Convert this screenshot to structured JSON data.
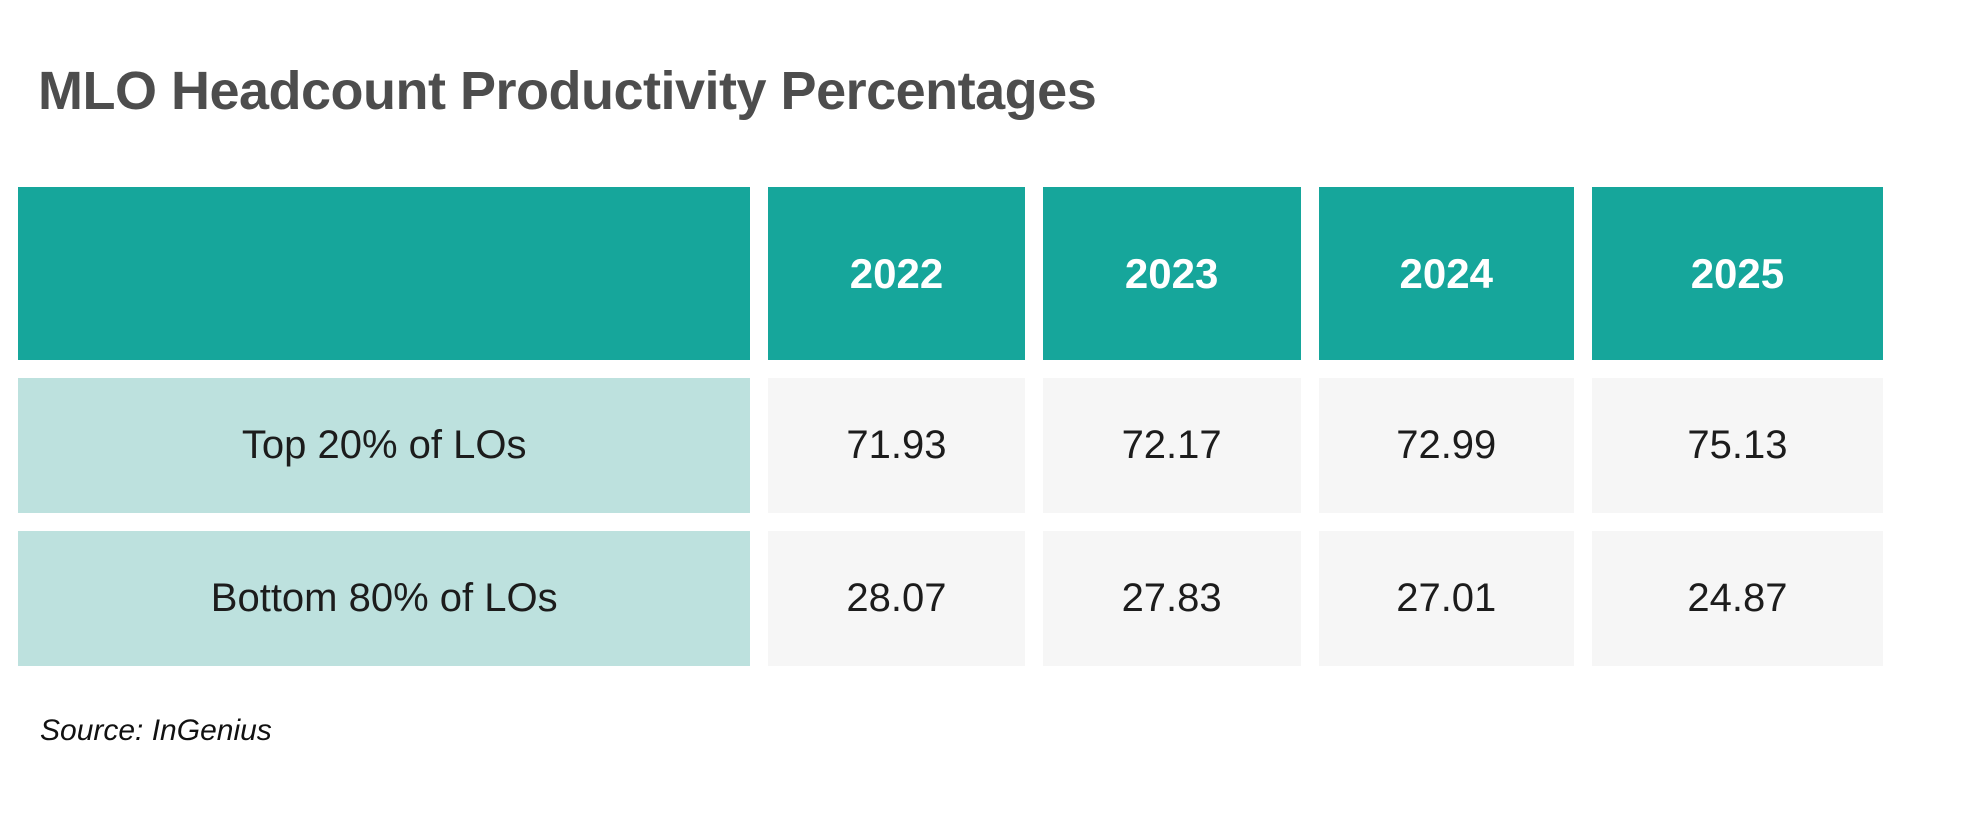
{
  "title": "MLO Headcount Productivity Percentages",
  "source_note": "Source: InGenius",
  "colors": {
    "header_teal": "#16a69b",
    "row_label_teal": "#bde1de",
    "value_cell_gray": "#f6f6f6",
    "title_gray": "#4d4d4d"
  },
  "table": {
    "corner_label": "",
    "columns": [
      "2022",
      "2023",
      "2024",
      "2025"
    ],
    "rows": [
      {
        "label": "Top 20% of LOs",
        "values": [
          "71.93",
          "72.17",
          "72.99",
          "75.13"
        ]
      },
      {
        "label": "Bottom 80% of LOs",
        "values": [
          "28.07",
          "27.83",
          "27.01",
          "24.87"
        ]
      }
    ]
  },
  "chart_data": {
    "type": "table",
    "title": "MLO Headcount Productivity Percentages",
    "categories": [
      "2022",
      "2023",
      "2024",
      "2025"
    ],
    "series": [
      {
        "name": "Top 20% of LOs",
        "values": [
          71.93,
          72.17,
          72.99,
          75.13
        ]
      },
      {
        "name": "Bottom 80% of LOs",
        "values": [
          28.07,
          27.83,
          27.01,
          24.87
        ]
      }
    ],
    "value_unit": "percent",
    "source": "Source: InGenius",
    "legend_position": "none",
    "grid": false
  }
}
